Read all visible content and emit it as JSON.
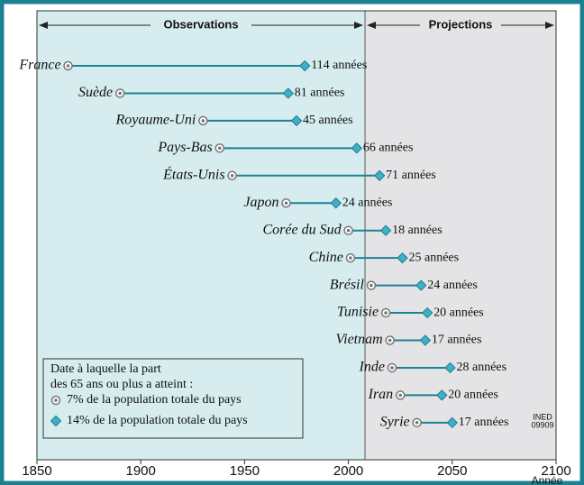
{
  "chart_data": {
    "type": "dumbbell",
    "categories": [
      "France",
      "Suède",
      "Royaume-Uni",
      "Pays-Bas",
      "États-Unis",
      "Japon",
      "Corée du Sud",
      "Chine",
      "Brésil",
      "Tunisie",
      "Vietnam",
      "Inde",
      "Iran",
      "Syrie"
    ],
    "series": [
      {
        "name": "7% de la population totale du pays",
        "color": "#777777",
        "values": [
          1865,
          1890,
          1930,
          1938,
          1944,
          1970,
          2000,
          2001,
          2011,
          2018,
          2020,
          2021,
          2025,
          2033
        ]
      },
      {
        "name": "14% de la population totale du pays",
        "color": "#3fb0c6",
        "values": [
          1979,
          1971,
          1975,
          2004,
          2015,
          1994,
          2018,
          2026,
          2035,
          2038,
          2037,
          2049,
          2045,
          2050
        ]
      }
    ],
    "duration_labels": [
      "114 années",
      "81 années",
      "45 années",
      "66 années",
      "71 années",
      "24 années",
      "18 années",
      "25 années",
      "24 années",
      "20 années",
      "17 années",
      "28 années",
      "20 années",
      "17 années"
    ],
    "legend_title": [
      "Date à laquelle la part",
      "des 65 ans ou plus a atteint :"
    ],
    "regions": [
      "Observations",
      "Projections"
    ],
    "projection_start": 2008,
    "xlim": [
      1850,
      2100
    ],
    "xticks": [
      1850,
      1900,
      1950,
      2000,
      2050,
      2100
    ],
    "xlabel": "Année",
    "source": [
      "INED",
      "09909"
    ]
  }
}
